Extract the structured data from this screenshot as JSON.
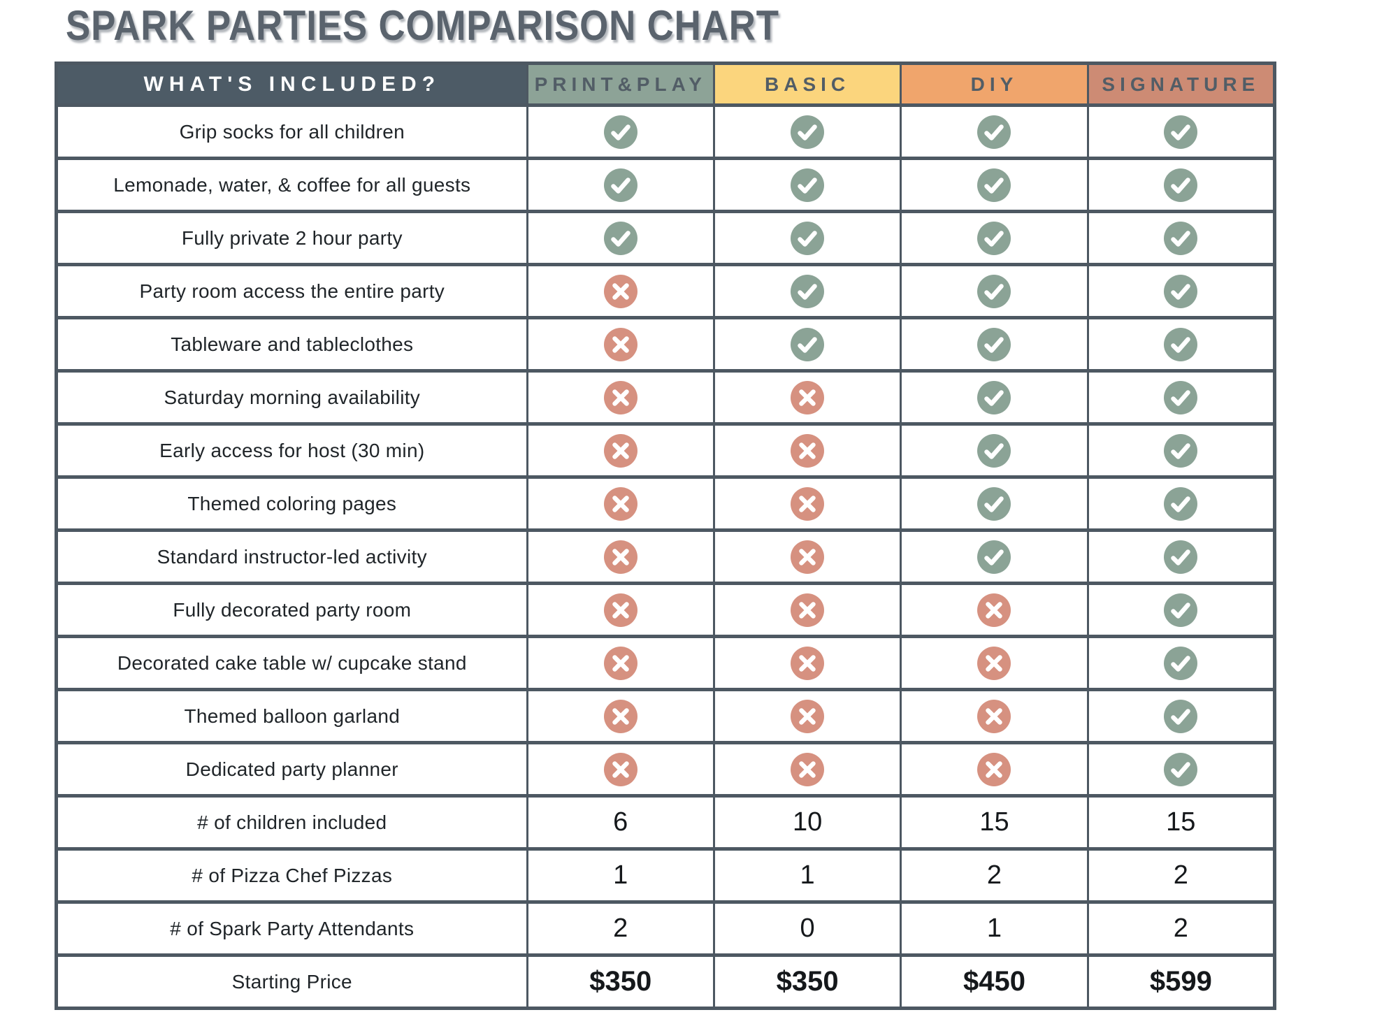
{
  "title": "SPARK PARTIES COMPARISON CHART",
  "colors": {
    "slate": "#4d5b66",
    "border": "#4d5862",
    "title_text": "#5a636d",
    "header_text": "#525d66",
    "label_text": "#1f2428",
    "check_circle": "#8ba396",
    "cross_circle": "#d69180",
    "mark_stroke": "#ffffff"
  },
  "chart_data": {
    "type": "table",
    "title": "SPARK PARTIES COMPARISON CHART",
    "columns": [
      {
        "label": "WHAT'S INCLUDED?",
        "bg": "#4d5b66",
        "text": "#ffffff"
      },
      {
        "label": "PRINT&PLAY",
        "bg": "#8da397"
      },
      {
        "label": "BASIC",
        "bg": "#fbd57d"
      },
      {
        "label": "DIY",
        "bg": "#f0a56c"
      },
      {
        "label": "SIGNATURE",
        "bg": "#cd8b74"
      }
    ],
    "rows": [
      {
        "label": "Grip socks for all children",
        "values": [
          "check",
          "check",
          "check",
          "check"
        ]
      },
      {
        "label": "Lemonade, water, & coffee for all guests",
        "values": [
          "check",
          "check",
          "check",
          "check"
        ]
      },
      {
        "label": "Fully private 2 hour party",
        "values": [
          "check",
          "check",
          "check",
          "check"
        ]
      },
      {
        "label": "Party room access the entire party",
        "values": [
          "cross",
          "check",
          "check",
          "check"
        ]
      },
      {
        "label": "Tableware and tableclothes",
        "values": [
          "cross",
          "check",
          "check",
          "check"
        ]
      },
      {
        "label": "Saturday morning availability",
        "values": [
          "cross",
          "cross",
          "check",
          "check"
        ]
      },
      {
        "label": "Early access for host (30 min)",
        "values": [
          "cross",
          "cross",
          "check",
          "check"
        ]
      },
      {
        "label": "Themed coloring pages",
        "values": [
          "cross",
          "cross",
          "check",
          "check"
        ]
      },
      {
        "label": "Standard instructor-led activity",
        "values": [
          "cross",
          "cross",
          "check",
          "check"
        ]
      },
      {
        "label": "Fully decorated party room",
        "values": [
          "cross",
          "cross",
          "cross",
          "check"
        ]
      },
      {
        "label": "Decorated cake table w/ cupcake stand",
        "values": [
          "cross",
          "cross",
          "cross",
          "check"
        ]
      },
      {
        "label": "Themed balloon garland",
        "values": [
          "cross",
          "cross",
          "cross",
          "check"
        ]
      },
      {
        "label": "Dedicated party planner",
        "values": [
          "cross",
          "cross",
          "cross",
          "check"
        ]
      },
      {
        "label": "# of children included",
        "values": [
          "6",
          "10",
          "15",
          "15"
        ]
      },
      {
        "label": "# of Pizza Chef Pizzas",
        "values": [
          "1",
          "1",
          "2",
          "2"
        ]
      },
      {
        "label": "# of Spark Party Attendants",
        "values": [
          "2",
          "0",
          "1",
          "2"
        ]
      },
      {
        "label": "Starting Price",
        "values": [
          "$350",
          "$350",
          "$450",
          "$599"
        ],
        "style": "price"
      }
    ]
  }
}
